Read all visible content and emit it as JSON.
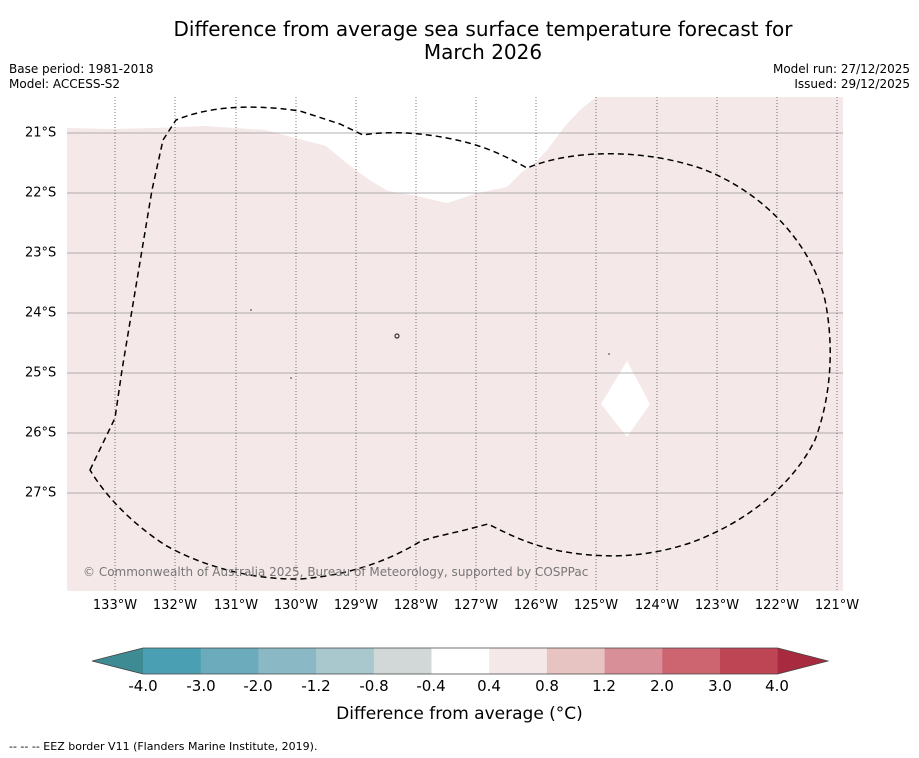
{
  "title_line1": "Difference from average sea surface temperature forecast for",
  "title_line2": "March 2026",
  "base_period": "Base period: 1981-2018",
  "model": "Model: ACCESS-S2",
  "model_run": "Model run: 27/12/2025",
  "issued": "Issued: 29/12/2025",
  "credit": "© Commonwealth of Australia 2025, Bureau of Meteorology, supported by COSPPac",
  "footnote": "--  --  -- EEZ border V11 (Flanders Marine Institute, 2019).",
  "map": {
    "lat_labels": [
      "21°S",
      "22°S",
      "23°S",
      "24°S",
      "25°S",
      "26°S",
      "27°S"
    ],
    "lon_labels": [
      "133°W",
      "132°W",
      "131°W",
      "130°W",
      "129°W",
      "128°W",
      "127°W",
      "126°W",
      "125°W",
      "124°W",
      "123°W",
      "122°W",
      "121°W"
    ],
    "ocean_color": "#f5e8e8",
    "grid_color": "#999999"
  },
  "colorbar": {
    "title": "Difference from average (°C)",
    "tick_labels": [
      "-4.0",
      "-3.0",
      "-2.0",
      "-1.2",
      "-0.8",
      "-0.4",
      "0.4",
      "0.8",
      "1.2",
      "2.0",
      "3.0",
      "4.0"
    ],
    "colors": [
      "#3e8b93",
      "#4aa0b2",
      "#6babbc",
      "#8ab8c4",
      "#a8c8cd",
      "#d2d7d8",
      "#ffffff",
      "#f5e8e8",
      "#e7c4c2",
      "#d88f97",
      "#cc6570",
      "#be4553",
      "#a82a3f"
    ]
  }
}
